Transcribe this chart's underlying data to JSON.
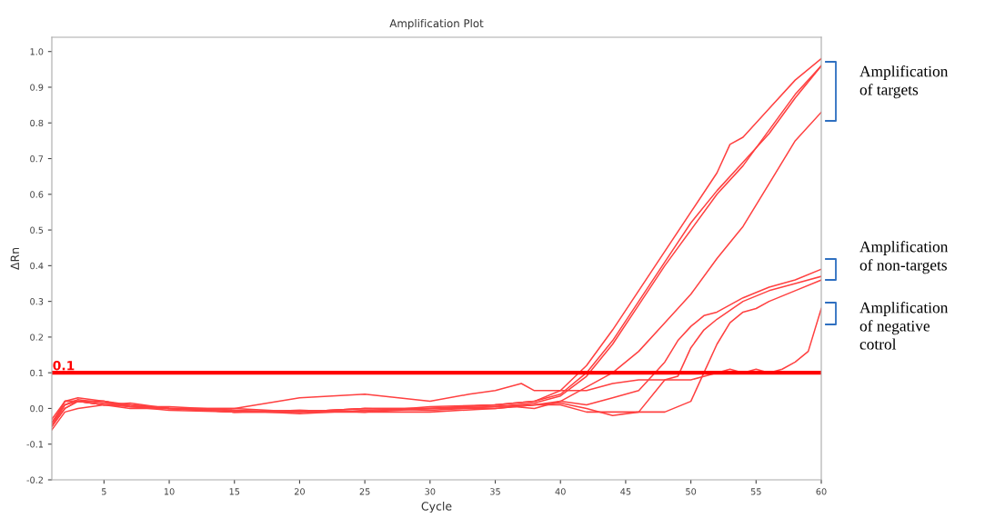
{
  "chart_data": {
    "type": "line",
    "title": "Amplification Plot",
    "xlabel": "Cycle",
    "ylabel": "ΔRn",
    "xlim": [
      1,
      60
    ],
    "ylim": [
      -0.2,
      1.04
    ],
    "xticks": [
      5,
      10,
      15,
      20,
      25,
      30,
      35,
      40,
      45,
      50,
      55,
      60
    ],
    "yticks": [
      {
        "value": -0.2,
        "label": "-0.2"
      },
      {
        "value": -0.1,
        "label": "-0.1"
      },
      {
        "value": 0,
        "label": "0.0"
      },
      0.1,
      0.2,
      0.3,
      0.4,
      0.5,
      0.6,
      0.7,
      0.8,
      0.9,
      {
        "value": 1.0,
        "label": "1.0"
      }
    ],
    "grid": false,
    "legend": false,
    "marker": "none",
    "line_style": "solid",
    "series": [
      {
        "color": "#ff4040",
        "x": [
          1,
          2,
          3,
          5,
          7,
          10,
          15,
          20,
          25,
          30,
          35,
          38,
          40,
          42,
          44,
          46,
          48,
          50,
          52,
          53,
          54,
          56,
          58,
          60
        ],
        "values": [
          -0.05,
          0.01,
          0.025,
          0.015,
          0.01,
          0.0,
          -0.005,
          -0.01,
          0.0,
          0.0,
          0.01,
          0.02,
          0.05,
          0.12,
          0.22,
          0.33,
          0.44,
          0.55,
          0.66,
          0.74,
          0.76,
          0.84,
          0.92,
          0.98
        ]
      },
      {
        "color": "#ff4040",
        "x": [
          1,
          2,
          3,
          5,
          7,
          10,
          15,
          20,
          25,
          30,
          35,
          38,
          40,
          42,
          44,
          46,
          48,
          50,
          52,
          54,
          56,
          58,
          60
        ],
        "values": [
          -0.04,
          0.02,
          0.03,
          0.02,
          0.005,
          -0.005,
          -0.01,
          -0.005,
          -0.01,
          0.005,
          0.01,
          0.02,
          0.04,
          0.1,
          0.19,
          0.3,
          0.41,
          0.52,
          0.61,
          0.69,
          0.77,
          0.87,
          0.96
        ]
      },
      {
        "color": "#ff4040",
        "x": [
          1,
          2,
          3,
          5,
          7,
          10,
          15,
          20,
          25,
          30,
          35,
          38,
          40,
          42,
          44,
          46,
          48,
          50,
          52,
          54,
          56,
          58,
          60
        ],
        "values": [
          -0.05,
          0.0,
          0.02,
          0.01,
          0.015,
          0.0,
          0.0,
          -0.01,
          0.0,
          -0.005,
          0.005,
          0.015,
          0.035,
          0.09,
          0.18,
          0.29,
          0.4,
          0.5,
          0.6,
          0.68,
          0.78,
          0.88,
          0.96
        ]
      },
      {
        "color": "#ff4040",
        "x": [
          1,
          2,
          3,
          5,
          7,
          10,
          15,
          20,
          25,
          30,
          35,
          38,
          40,
          42,
          44,
          46,
          48,
          50,
          52,
          54,
          56,
          58,
          60
        ],
        "values": [
          -0.04,
          0.01,
          0.02,
          0.02,
          0.005,
          0.005,
          -0.005,
          -0.015,
          -0.005,
          0.0,
          0.005,
          0.01,
          0.02,
          0.06,
          0.1,
          0.16,
          0.24,
          0.32,
          0.42,
          0.51,
          0.63,
          0.75,
          0.83
        ]
      },
      {
        "color": "#ff4040",
        "x": [
          1,
          2,
          3,
          5,
          7,
          10,
          15,
          20,
          25,
          30,
          35,
          38,
          40,
          42,
          44,
          46,
          48,
          49,
          50,
          51,
          52,
          54,
          56,
          58,
          60
        ],
        "values": [
          -0.05,
          0.02,
          0.02,
          0.01,
          0.01,
          0.0,
          -0.01,
          -0.01,
          0.0,
          0.0,
          0.01,
          0.0,
          0.02,
          0.01,
          0.03,
          0.05,
          0.13,
          0.19,
          0.23,
          0.26,
          0.27,
          0.31,
          0.34,
          0.36,
          0.39
        ]
      },
      {
        "color": "#ff4040",
        "x": [
          1,
          2,
          3,
          5,
          7,
          10,
          15,
          20,
          25,
          30,
          33,
          35,
          37,
          38,
          40,
          42,
          44,
          46,
          48,
          49,
          50,
          51,
          52,
          54,
          56,
          58,
          60
        ],
        "values": [
          -0.03,
          0.02,
          0.02,
          0.02,
          0.01,
          0.0,
          0.0,
          0.03,
          0.04,
          0.02,
          0.04,
          0.05,
          0.07,
          0.05,
          0.05,
          0.05,
          0.07,
          0.08,
          0.08,
          0.09,
          0.17,
          0.22,
          0.25,
          0.3,
          0.33,
          0.35,
          0.37
        ]
      },
      {
        "color": "#ff4040",
        "x": [
          1,
          2,
          3,
          5,
          7,
          10,
          15,
          20,
          25,
          30,
          35,
          38,
          40,
          42,
          44,
          46,
          48,
          50,
          51,
          52,
          53,
          54,
          55,
          56,
          58,
          60
        ],
        "values": [
          -0.05,
          0.0,
          0.02,
          0.01,
          0.005,
          0.0,
          -0.01,
          -0.005,
          -0.01,
          -0.01,
          0.0,
          0.01,
          0.01,
          -0.01,
          -0.01,
          -0.01,
          -0.01,
          0.02,
          0.1,
          0.18,
          0.24,
          0.27,
          0.28,
          0.3,
          0.33,
          0.36
        ]
      },
      {
        "color": "#ff4040",
        "x": [
          1,
          2,
          3,
          5,
          7,
          10,
          15,
          20,
          25,
          30,
          35,
          38,
          40,
          42,
          44,
          46,
          48,
          50,
          52,
          53,
          54,
          55,
          56,
          57,
          58,
          59,
          60
        ],
        "values": [
          -0.06,
          -0.01,
          0.0,
          0.01,
          0.0,
          0.0,
          -0.01,
          -0.01,
          -0.01,
          0.0,
          0.0,
          0.01,
          0.015,
          0.0,
          -0.02,
          -0.01,
          0.08,
          0.08,
          0.1,
          0.11,
          0.1,
          0.11,
          0.1,
          0.11,
          0.13,
          0.16,
          0.28
        ]
      }
    ],
    "ref_lines": [
      {
        "axis": "y",
        "value": 0.1,
        "label": "0.1",
        "color": "#ff0000"
      }
    ],
    "annotations": [
      "Amplification\nof targets",
      "Amplification\nof non-targets",
      "Amplification\nof negative\ncotrol"
    ]
  }
}
